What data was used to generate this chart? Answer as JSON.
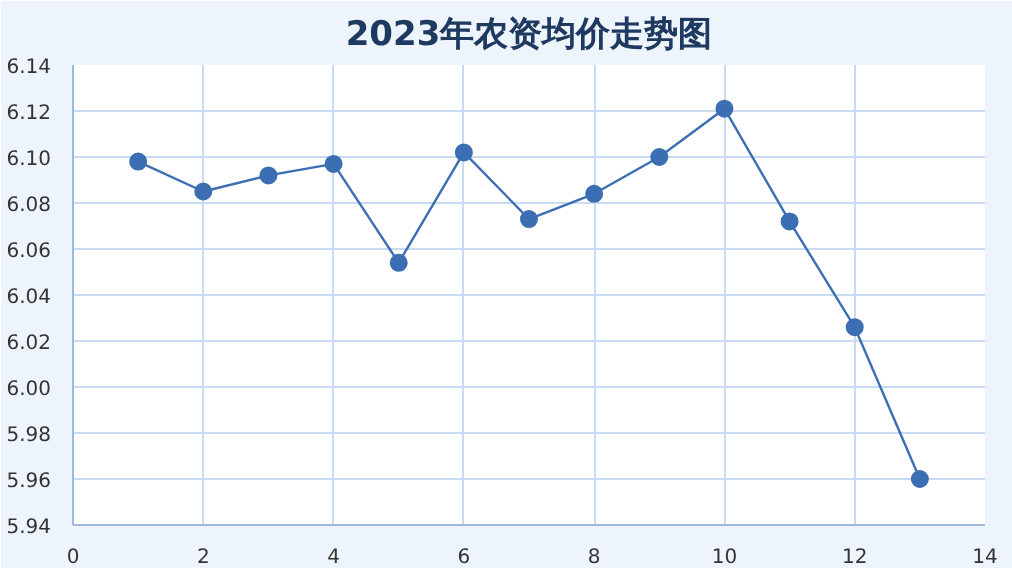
{
  "chart_data": {
    "type": "line",
    "title": "2023年农资均价走势图",
    "x": [
      1,
      2,
      3,
      4,
      5,
      6,
      7,
      8,
      9,
      10,
      11,
      12,
      13
    ],
    "series": [
      {
        "color": "#3c6eb4",
        "values": [
          6.098,
          6.085,
          6.092,
          6.097,
          6.054,
          6.102,
          6.073,
          6.084,
          6.1,
          6.121,
          6.072,
          6.026,
          5.96
        ]
      }
    ],
    "xlim": [
      0,
      14
    ],
    "xticks": [
      0,
      2,
      4,
      6,
      8,
      10,
      12,
      14
    ],
    "ylim": [
      5.94,
      6.14
    ],
    "yticks": [
      5.94,
      5.96,
      5.98,
      {
        "value": 6.0,
        "label": "6.00"
      },
      6.02,
      6.04,
      6.06,
      6.08,
      {
        "value": 6.1,
        "label": "6.10"
      },
      6.12,
      6.14
    ],
    "grid": true,
    "marker": "circle",
    "line_style": "solid"
  }
}
